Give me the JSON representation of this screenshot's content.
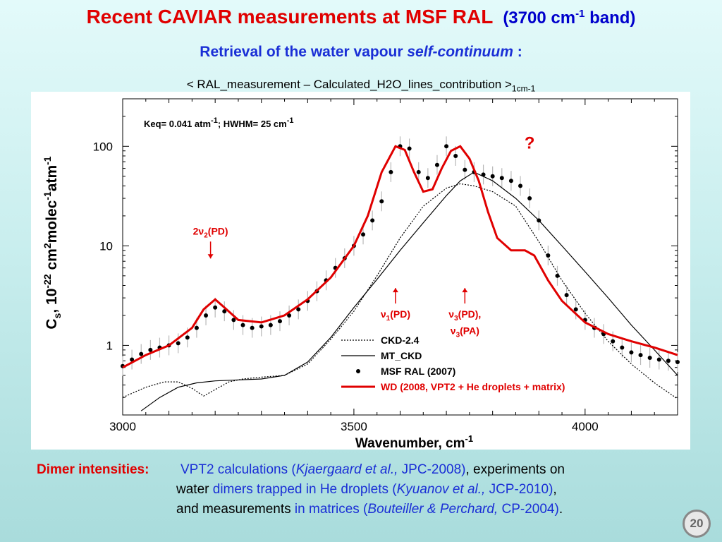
{
  "header": {
    "title_main": "Recent  CAVIAR  measurements at MSF RAL",
    "title_band": "(3700 cm",
    "title_band_sup": "-1",
    "title_band_end": " band)",
    "subtitle_prefix": "Retrieval of the water vapour ",
    "subtitle_italic": "self-continuum",
    "subtitle_suffix": " :",
    "formula": "< RAL_measurement  – Calculated_H2O_lines_contribution >",
    "formula_sub": "1cm-1"
  },
  "chart_data": {
    "type": "line",
    "xlabel": "Wavenumber,  cm",
    "xlabel_sup": "-1",
    "ylabel": "C",
    "ylabel_sub": "s",
    "ylabel_rest": ", 10",
    "ylabel_sup1": "-22",
    "ylabel_mid": " cm",
    "ylabel_sup2": "2",
    "ylabel_mid2": "molec",
    "ylabel_sup3": "-1",
    "ylabel_end": "atm",
    "ylabel_sup4": "-1",
    "xlim": [
      3000,
      4200
    ],
    "ylim": [
      0.2,
      300
    ],
    "y_scale": "log",
    "x_ticks": [
      3000,
      3500,
      4000
    ],
    "x_tick_labels": [
      "3000",
      "3500",
      "4000"
    ],
    "y_ticks": [
      1,
      10,
      100
    ],
    "y_tick_labels": [
      "1",
      "10",
      "100"
    ],
    "annotation_keq": "Keq= 0.041 atm",
    "annotation_keq_sup": "-1",
    "annotation_hwhm": ";  HWHM= 25 cm",
    "annotation_hwhm_sup": "-1",
    "question_mark": "?",
    "peak_labels": [
      {
        "main": "2ν",
        "sub": "2",
        "tail": "(PD)",
        "x": 3190,
        "y": 13
      },
      {
        "main": "ν",
        "sub": "1",
        "tail": "(PD)",
        "x": 3590,
        "y": 1.9
      },
      {
        "main": "ν",
        "sub": "3",
        "tail": "(PD),",
        "x": 3740,
        "y": 1.9
      },
      {
        "main": "ν",
        "sub": "3",
        "tail": "(PA)",
        "x": 3740,
        "y": 1.3
      }
    ],
    "legend_position": "lower-right",
    "legend": [
      {
        "label": "CKD-2.4",
        "style": "dotted",
        "color": "#000000"
      },
      {
        "label": "MT_CKD",
        "style": "solid",
        "color": "#000000"
      },
      {
        "label": "MSF RAL (2007)",
        "style": "dots",
        "color": "#000000"
      },
      {
        "label": "WD (2008, VPT2 + He droplets + matrix)",
        "style": "thick",
        "color": "#e00000"
      }
    ],
    "series": [
      {
        "name": "CKD-2.4",
        "color": "#000000",
        "x": [
          3000,
          3050,
          3090,
          3120,
          3150,
          3175,
          3200,
          3230,
          3260,
          3300,
          3350,
          3400,
          3450,
          3500,
          3550,
          3600,
          3650,
          3700,
          3730,
          3760,
          3800,
          3850,
          3900,
          3950,
          4000,
          4050,
          4100,
          4150,
          4200
        ],
        "y": [
          0.3,
          0.38,
          0.43,
          0.43,
          0.37,
          0.31,
          0.36,
          0.43,
          0.46,
          0.48,
          0.5,
          0.65,
          1.15,
          2.2,
          5,
          12,
          25,
          38,
          42,
          40,
          35,
          25,
          11,
          4.5,
          2.1,
          1.1,
          0.65,
          0.42,
          0.29
        ]
      },
      {
        "name": "MT_CKD",
        "color": "#000000",
        "x": [
          3040,
          3080,
          3120,
          3160,
          3200,
          3250,
          3300,
          3350,
          3400,
          3450,
          3500,
          3550,
          3600,
          3650,
          3700,
          3730,
          3760,
          3800,
          3850,
          3900,
          3950,
          4000,
          4050,
          4100,
          4150,
          4200
        ],
        "y": [
          0.22,
          0.3,
          0.38,
          0.42,
          0.44,
          0.45,
          0.46,
          0.5,
          0.68,
          1.2,
          2.4,
          4.6,
          9,
          17,
          32,
          45,
          55,
          45,
          30,
          18,
          10,
          5.5,
          3,
          1.6,
          0.9,
          0.5
        ]
      },
      {
        "name": "WD (2008, VPT2 + He droplets + matrix)",
        "color": "#e00000",
        "x": [
          3000,
          3050,
          3100,
          3150,
          3175,
          3200,
          3220,
          3250,
          3300,
          3350,
          3400,
          3450,
          3500,
          3530,
          3560,
          3590,
          3610,
          3630,
          3650,
          3670,
          3690,
          3710,
          3730,
          3750,
          3770,
          3790,
          3810,
          3840,
          3870,
          3890,
          3920,
          3950,
          4000,
          4050,
          4100,
          4150,
          4200
        ],
        "y": [
          0.6,
          0.8,
          1.0,
          1.5,
          2.3,
          2.9,
          2.4,
          1.8,
          1.7,
          2.0,
          2.9,
          4.8,
          10,
          20,
          55,
          100,
          92,
          55,
          35,
          37,
          60,
          90,
          100,
          75,
          45,
          22,
          12,
          9,
          9,
          8,
          4.5,
          2.8,
          1.7,
          1.3,
          1.1,
          0.95,
          0.8
        ]
      },
      {
        "name": "MSF RAL (2007)",
        "color": "#000000",
        "x": [
          3000,
          3020,
          3040,
          3060,
          3080,
          3100,
          3120,
          3140,
          3160,
          3180,
          3200,
          3220,
          3240,
          3260,
          3280,
          3300,
          3320,
          3340,
          3360,
          3380,
          3400,
          3420,
          3440,
          3460,
          3480,
          3500,
          3520,
          3540,
          3560,
          3580,
          3600,
          3620,
          3640,
          3660,
          3680,
          3700,
          3720,
          3740,
          3760,
          3780,
          3800,
          3820,
          3840,
          3860,
          3880,
          3900,
          3920,
          3940,
          3960,
          3980,
          4000,
          4020,
          4040,
          4060,
          4080,
          4100,
          4120,
          4140,
          4160,
          4180,
          4200
        ],
        "y": [
          0.62,
          0.72,
          0.82,
          0.9,
          0.95,
          1.0,
          1.05,
          1.2,
          1.5,
          2.0,
          2.4,
          2.2,
          1.8,
          1.6,
          1.5,
          1.55,
          1.6,
          1.75,
          2.0,
          2.3,
          2.8,
          3.5,
          4.5,
          6.0,
          7.5,
          10.0,
          13.0,
          18.0,
          28.0,
          55.0,
          100.0,
          95.0,
          55.0,
          48.0,
          65.0,
          100.0,
          80.0,
          58.0,
          55.0,
          52.0,
          50.0,
          48.0,
          45.0,
          40.0,
          30.0,
          18.0,
          8.0,
          5.0,
          3.2,
          2.3,
          1.8,
          1.5,
          1.3,
          1.1,
          0.95,
          0.85,
          0.8,
          0.75,
          0.72,
          0.7,
          0.68
        ]
      }
    ]
  },
  "footer": {
    "label": "Dimer intensities:",
    "l1_a": "VPT2 calculations (",
    "l1_b": "Kjaergaard et al.,",
    "l1_c": " JPC-2008)",
    "l1_d": ", experiments on",
    "l2_a": "water ",
    "l2_b": "dimers trapped in He droplets (",
    "l2_c": "Kyuanov et al.,",
    "l2_d": " JCP-2010)",
    "l2_e": ",",
    "l3_a": "and measurements ",
    "l3_b": "in matrices (",
    "l3_c": "Bouteiller & Perchard,",
    "l3_d": " CP-2004)",
    "l3_e": ".",
    "page_number": "20"
  }
}
